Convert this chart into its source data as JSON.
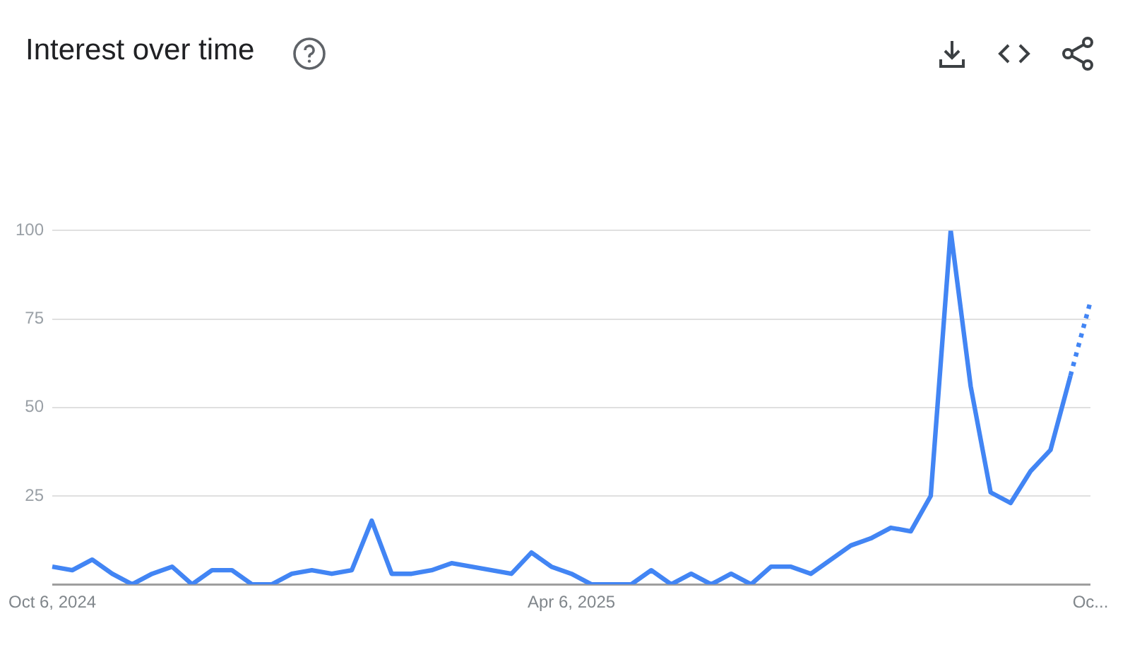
{
  "chart_data": {
    "type": "line",
    "title": "Interest over time",
    "categories": [
      "Oct 6, 2024",
      null,
      null,
      null,
      null,
      null,
      null,
      null,
      null,
      null,
      null,
      null,
      null,
      null,
      null,
      null,
      null,
      null,
      null,
      null,
      null,
      null,
      null,
      null,
      null,
      null,
      "Apr 6, 2025",
      null,
      null,
      null,
      null,
      null,
      null,
      null,
      null,
      null,
      null,
      null,
      null,
      null,
      null,
      null,
      null,
      null,
      null,
      null,
      null,
      null,
      null,
      null,
      null,
      null,
      "Oc..."
    ],
    "series": [
      {
        "color": "#4285f4",
        "line_style": "solid",
        "values": [
          5,
          4,
          7,
          3,
          0,
          3,
          5,
          0,
          4,
          4,
          0,
          0,
          3,
          4,
          3,
          4,
          18,
          3,
          3,
          4,
          6,
          5,
          4,
          3,
          9,
          5,
          3,
          0,
          0,
          0,
          4,
          0,
          3,
          0,
          3,
          0,
          5,
          5,
          3,
          7,
          11,
          13,
          16,
          15,
          25,
          100,
          56,
          26,
          23,
          32,
          38,
          59,
          null
        ]
      },
      {
        "type": "line",
        "color": "#4285f4",
        "line_style": "dotted",
        "values": [
          null,
          null,
          null,
          null,
          null,
          null,
          null,
          null,
          null,
          null,
          null,
          null,
          null,
          null,
          null,
          null,
          null,
          null,
          null,
          null,
          null,
          null,
          null,
          null,
          null,
          null,
          null,
          null,
          null,
          null,
          null,
          null,
          null,
          null,
          null,
          null,
          null,
          null,
          null,
          null,
          null,
          null,
          null,
          null,
          null,
          null,
          null,
          null,
          null,
          null,
          null,
          59,
          80
        ]
      }
    ],
    "ylim": [
      0,
      100
    ],
    "yticks": [
      {
        "value": 0,
        "label": null
      },
      25,
      50,
      75,
      100
    ],
    "grid": "y",
    "legend": false,
    "marker": "none"
  }
}
